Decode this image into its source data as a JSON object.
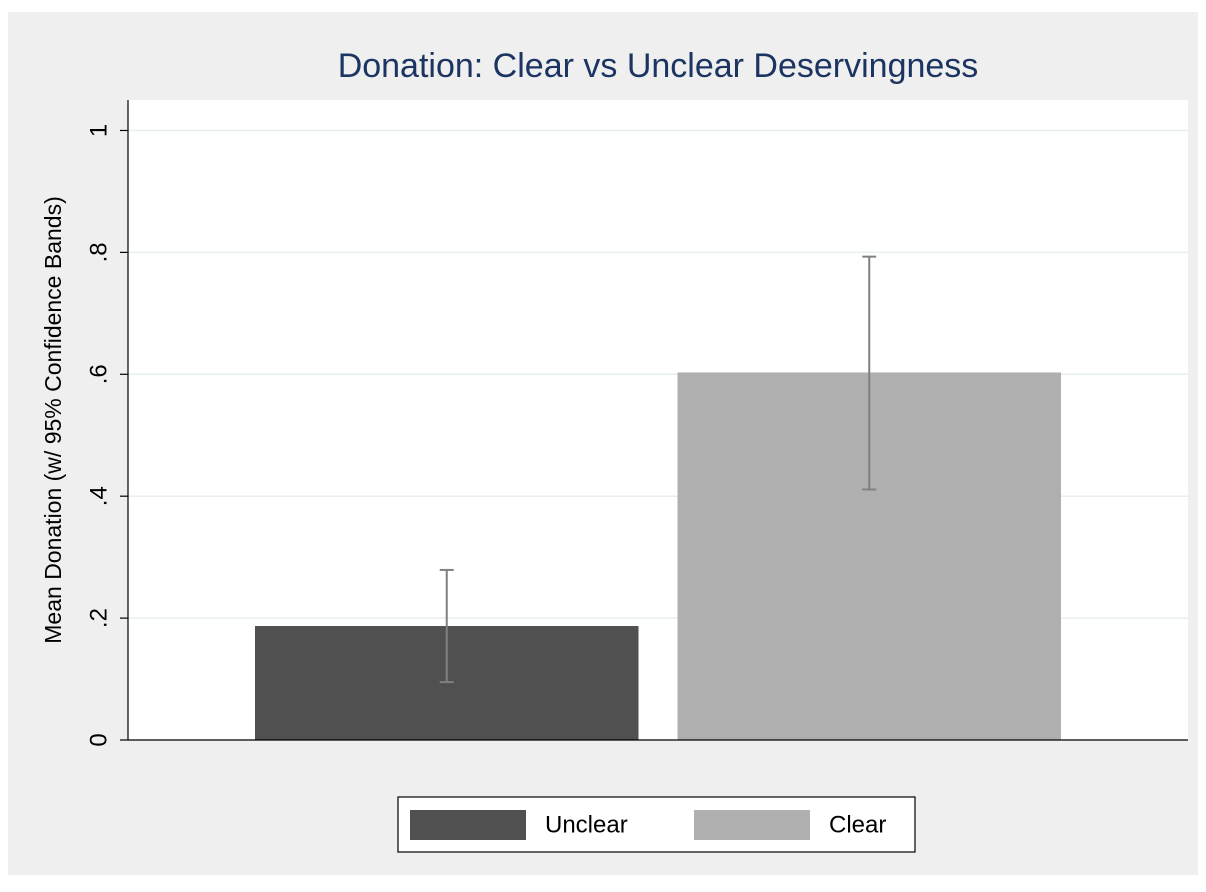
{
  "chart_data": {
    "type": "bar",
    "title": "Donation: Clear vs Unclear Deservingness",
    "y_label": "Mean Donation (w/ 95% Confidence Bands)",
    "series": [
      {
        "name": "Unclear",
        "color": "#505050",
        "values": [
          0.187
        ],
        "ci_low": [
          0.095
        ],
        "ci_high": [
          0.279
        ]
      },
      {
        "name": "Clear",
        "color": "#afafaf",
        "values": [
          0.603
        ],
        "ci_low": [
          0.411
        ],
        "ci_high": [
          0.793
        ]
      }
    ],
    "error_color": "#808080",
    "ylim": [
      0,
      1.05
    ],
    "yticks": [
      0,
      {
        "value": 0.2,
        "label": ".2"
      },
      {
        "value": 0.4,
        "label": ".4"
      },
      {
        "value": 0.6,
        "label": ".6"
      },
      {
        "value": 0.8,
        "label": ".8"
      },
      1
    ],
    "grid": true,
    "legend": "bottom"
  }
}
